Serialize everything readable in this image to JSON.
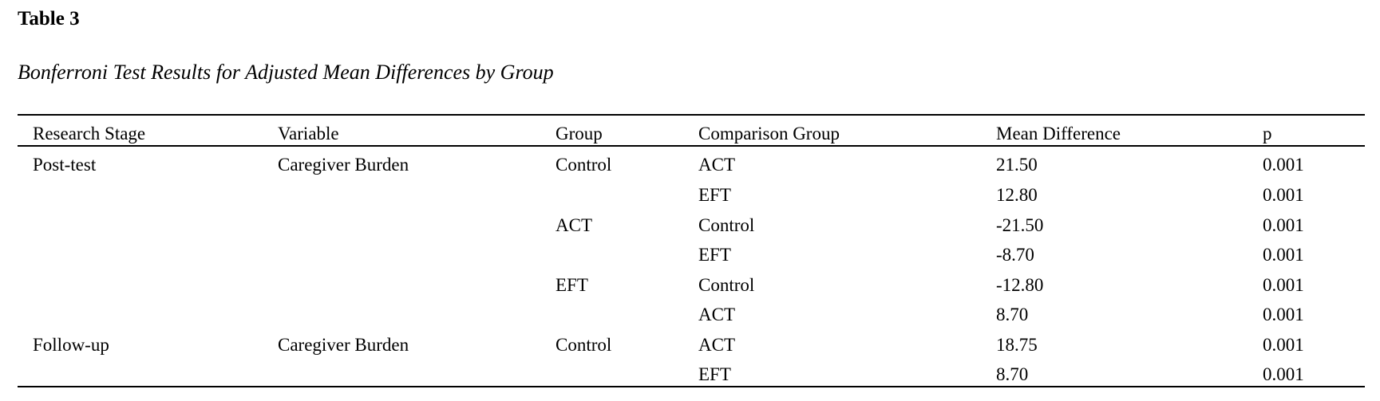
{
  "table": {
    "number": "Table 3",
    "caption": "Bonferroni Test Results for Adjusted Mean Differences by Group",
    "headers": [
      "Research Stage",
      "Variable",
      "Group",
      "Comparison Group",
      "Mean Difference",
      "p"
    ],
    "rows": [
      [
        "Post-test",
        "Caregiver Burden",
        "Control",
        "ACT",
        "21.50",
        "0.001"
      ],
      [
        "",
        "",
        "",
        "EFT",
        "12.80",
        "0.001"
      ],
      [
        "",
        "",
        "ACT",
        "Control",
        "-21.50",
        "0.001"
      ],
      [
        "",
        "",
        "",
        "EFT",
        "-8.70",
        "0.001"
      ],
      [
        "",
        "",
        "EFT",
        "Control",
        "-12.80",
        "0.001"
      ],
      [
        "",
        "",
        "",
        "ACT",
        "8.70",
        "0.001"
      ],
      [
        "Follow-up",
        "Caregiver Burden",
        "Control",
        "ACT",
        "18.75",
        "0.001"
      ],
      [
        "",
        "",
        "",
        "EFT",
        "8.70",
        "0.001"
      ]
    ]
  }
}
